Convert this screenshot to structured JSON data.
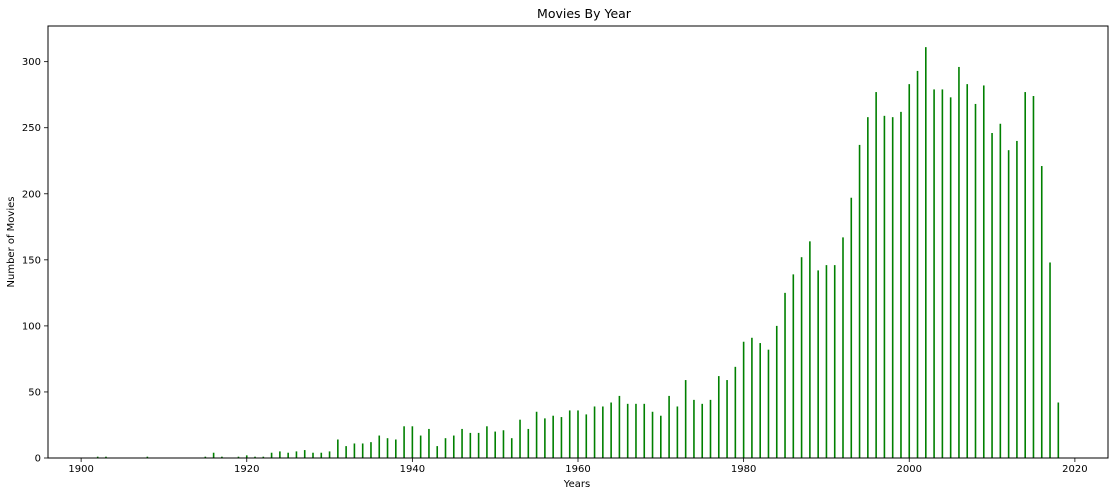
{
  "chart_data": {
    "type": "bar",
    "title": "Movies By Year",
    "xlabel": "Years",
    "ylabel": "Number of Movies",
    "xlim": [
      1896,
      2024
    ],
    "ylim": [
      0,
      327
    ],
    "xticks": [
      1900,
      1920,
      1940,
      1960,
      1980,
      2000,
      2020
    ],
    "yticks": [
      0,
      50,
      100,
      150,
      200,
      250,
      300
    ],
    "grid": false,
    "bar_color": "#008000",
    "x": [
      1902,
      1903,
      1908,
      1915,
      1916,
      1917,
      1919,
      1920,
      1921,
      1922,
      1923,
      1924,
      1925,
      1926,
      1927,
      1928,
      1929,
      1930,
      1931,
      1932,
      1933,
      1934,
      1935,
      1936,
      1937,
      1938,
      1939,
      1940,
      1941,
      1942,
      1943,
      1944,
      1945,
      1946,
      1947,
      1948,
      1949,
      1950,
      1951,
      1952,
      1953,
      1954,
      1955,
      1956,
      1957,
      1958,
      1959,
      1960,
      1961,
      1962,
      1963,
      1964,
      1965,
      1966,
      1967,
      1968,
      1969,
      1970,
      1971,
      1972,
      1973,
      1974,
      1975,
      1976,
      1977,
      1978,
      1979,
      1980,
      1981,
      1982,
      1983,
      1984,
      1985,
      1986,
      1987,
      1988,
      1989,
      1990,
      1991,
      1992,
      1993,
      1994,
      1995,
      1996,
      1997,
      1998,
      1999,
      2000,
      2001,
      2002,
      2003,
      2004,
      2005,
      2006,
      2007,
      2008,
      2009,
      2010,
      2011,
      2012,
      2013,
      2014,
      2015,
      2016,
      2017,
      2018
    ],
    "values": [
      1,
      1,
      1,
      1,
      4,
      1,
      1,
      2,
      1,
      1,
      4,
      5,
      4,
      5,
      6,
      4,
      4,
      5,
      14,
      9,
      11,
      11,
      12,
      17,
      15,
      14,
      24,
      24,
      17,
      22,
      9,
      15,
      17,
      22,
      19,
      19,
      24,
      20,
      21,
      15,
      29,
      22,
      35,
      30,
      32,
      31,
      36,
      36,
      33,
      39,
      39,
      42,
      47,
      41,
      41,
      41,
      35,
      32,
      47,
      39,
      59,
      44,
      41,
      44,
      62,
      59,
      69,
      88,
      91,
      87,
      82,
      100,
      125,
      139,
      152,
      164,
      142,
      146,
      146,
      167,
      197,
      237,
      258,
      277,
      259,
      258,
      262,
      283,
      293,
      311,
      279,
      279,
      273,
      296,
      283,
      268,
      282,
      246,
      253,
      233,
      240,
      277,
      274,
      221,
      148,
      42
    ]
  }
}
